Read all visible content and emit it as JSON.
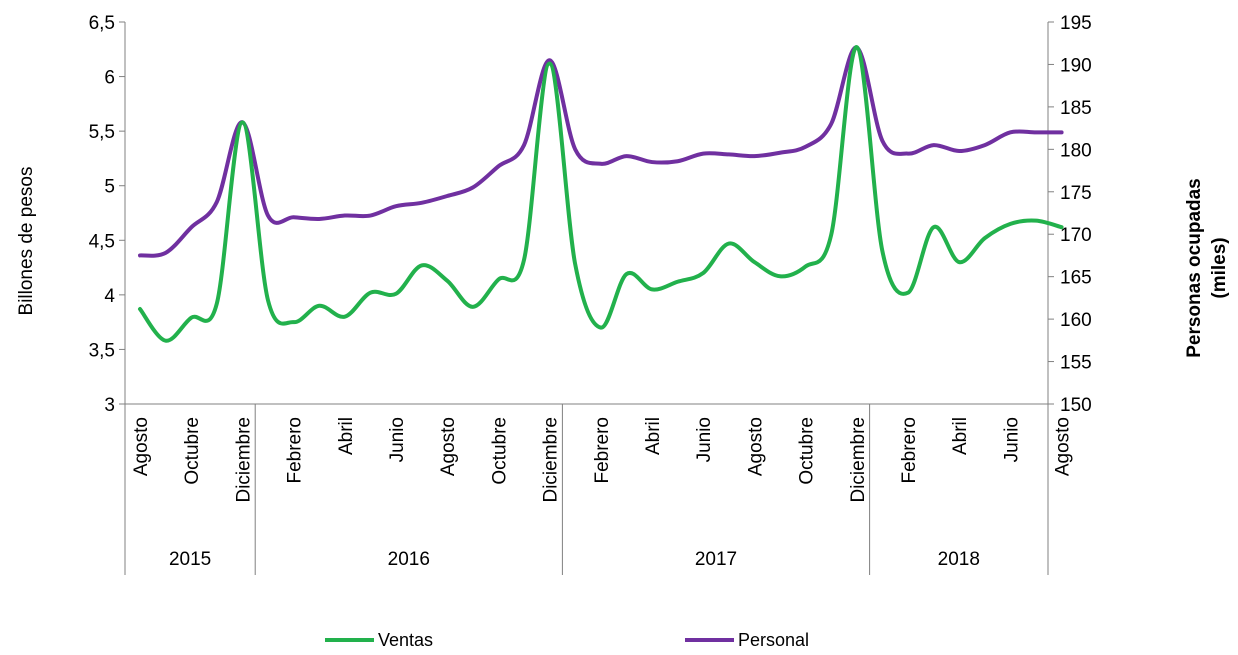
{
  "chart_data": {
    "type": "line",
    "title": "",
    "ylabel": "Billones de pesos",
    "y2label_line1": "Personas ocupadas",
    "y2label_line2": "(miles)",
    "ylim": [
      3,
      6.5
    ],
    "yticks": [
      "3",
      "3,5",
      "4",
      "4,5",
      "5",
      "5,5",
      "6",
      "6,5"
    ],
    "y2lim": [
      150,
      195
    ],
    "y2ticks": [
      "150",
      "155",
      "160",
      "165",
      "170",
      "175",
      "180",
      "185",
      "190",
      "195"
    ],
    "x_month_labels": [
      "Agosto",
      "Octubre",
      "Diciembre",
      "Febrero",
      "Abril",
      "Junio",
      "Agosto",
      "Octubre",
      "Diciembre",
      "Febrero",
      "Abril",
      "Junio",
      "Agosto",
      "Octubre",
      "Diciembre",
      "Febrero",
      "Abril",
      "Junio",
      "Agosto"
    ],
    "x_years": [
      {
        "label": "2015",
        "start_month": 0,
        "end_month": 4
      },
      {
        "label": "2016",
        "start_month": 5,
        "end_month": 16
      },
      {
        "label": "2017",
        "start_month": 17,
        "end_month": 28
      },
      {
        "label": "2018",
        "start_month": 29,
        "end_month": 36
      }
    ],
    "x_months": [
      "2015-08",
      "2015-09",
      "2015-10",
      "2015-11",
      "2015-12",
      "2016-01",
      "2016-02",
      "2016-03",
      "2016-04",
      "2016-05",
      "2016-06",
      "2016-07",
      "2016-08",
      "2016-09",
      "2016-10",
      "2016-11",
      "2016-12",
      "2017-01",
      "2017-02",
      "2017-03",
      "2017-04",
      "2017-05",
      "2017-06",
      "2017-07",
      "2017-08",
      "2017-09",
      "2017-10",
      "2017-11",
      "2017-12",
      "2018-01",
      "2018-02",
      "2018-03",
      "2018-04",
      "2018-05",
      "2018-06",
      "2018-07",
      "2018-08"
    ],
    "series": [
      {
        "name": "Ventas",
        "axis": "left",
        "color": "#22b14c",
        "values": [
          3.87,
          3.58,
          3.79,
          3.92,
          5.58,
          3.95,
          3.75,
          3.9,
          3.8,
          4.02,
          4.01,
          4.27,
          4.13,
          3.89,
          4.14,
          4.32,
          6.12,
          4.28,
          3.7,
          4.19,
          4.05,
          4.12,
          4.2,
          4.47,
          4.3,
          4.17,
          4.26,
          4.55,
          6.27,
          4.4,
          4.02,
          4.62,
          4.3,
          4.52,
          4.65,
          4.68,
          4.62
        ]
      },
      {
        "name": "Personal",
        "axis": "right",
        "color": "#7030a0",
        "values": [
          167.5,
          167.8,
          170.8,
          173.8,
          183.2,
          172.2,
          172.0,
          171.8,
          172.2,
          172.2,
          173.3,
          173.7,
          174.5,
          175.5,
          178.0,
          180.5,
          190.5,
          180.0,
          178.3,
          179.2,
          178.5,
          178.6,
          179.5,
          179.4,
          179.2,
          179.6,
          180.3,
          183.0,
          192.0,
          181.0,
          179.5,
          180.5,
          179.8,
          180.5,
          182.0,
          182.0,
          182.0
        ]
      }
    ],
    "legend_position": "bottom"
  }
}
